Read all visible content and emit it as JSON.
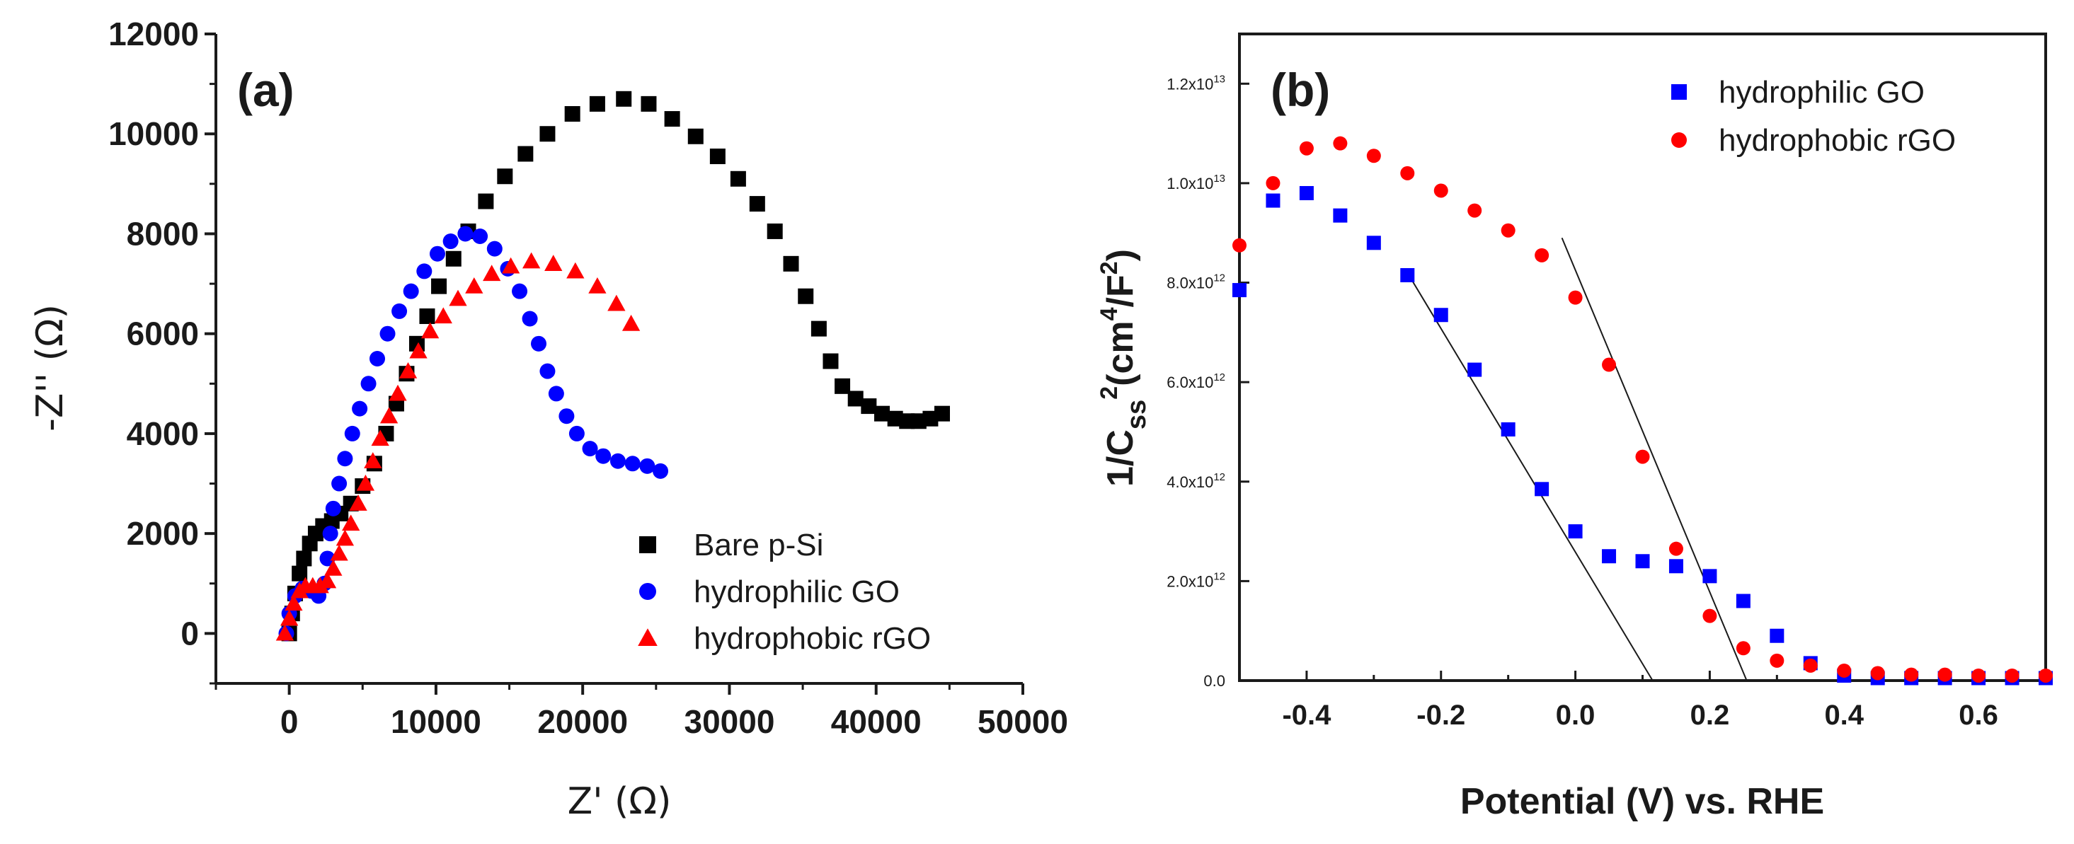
{
  "chart_data": [
    {
      "type": "scatter",
      "panel_label": "(a)",
      "xlabel": "Z' (Ω)",
      "ylabel": "-Z'' (Ω)",
      "xlim": [
        -5000,
        50000
      ],
      "ylim": [
        -1000,
        12000
      ],
      "x_ticks": [
        "0",
        "10000",
        "20000",
        "30000",
        "40000",
        "50000"
      ],
      "x_tick_values": [
        0,
        10000,
        20000,
        30000,
        40000,
        50000
      ],
      "y_ticks": [
        "0",
        "2000",
        "4000",
        "6000",
        "8000",
        "10000",
        "12000"
      ],
      "y_tick_values": [
        0,
        2000,
        4000,
        6000,
        8000,
        10000,
        12000
      ],
      "legend_position": "bottom-right",
      "series": [
        {
          "name": "Bare p-Si",
          "marker": "square",
          "color": "#000000",
          "points": [
            [
              0,
              0
            ],
            [
              200,
              400
            ],
            [
              400,
              800
            ],
            [
              700,
              1200
            ],
            [
              1000,
              1500
            ],
            [
              1400,
              1800
            ],
            [
              1800,
              2000
            ],
            [
              2300,
              2150
            ],
            [
              2900,
              2250
            ],
            [
              3500,
              2400
            ],
            [
              4200,
              2600
            ],
            [
              5000,
              2950
            ],
            [
              5800,
              3400
            ],
            [
              6600,
              4000
            ],
            [
              7300,
              4600
            ],
            [
              8000,
              5200
            ],
            [
              8700,
              5800
            ],
            [
              9400,
              6350
            ],
            [
              10200,
              6950
            ],
            [
              11200,
              7500
            ],
            [
              12200,
              8050
            ],
            [
              13400,
              8650
            ],
            [
              14700,
              9150
            ],
            [
              16100,
              9600
            ],
            [
              17600,
              10000
            ],
            [
              19300,
              10400
            ],
            [
              21000,
              10600
            ],
            [
              22800,
              10700
            ],
            [
              24500,
              10600
            ],
            [
              26100,
              10300
            ],
            [
              27700,
              9950
            ],
            [
              29200,
              9550
            ],
            [
              30600,
              9100
            ],
            [
              31900,
              8600
            ],
            [
              33100,
              8050
            ],
            [
              34200,
              7400
            ],
            [
              35200,
              6750
            ],
            [
              36100,
              6100
            ],
            [
              36900,
              5450
            ],
            [
              37700,
              4950
            ],
            [
              38600,
              4700
            ],
            [
              39500,
              4550
            ],
            [
              40400,
              4400
            ],
            [
              41300,
              4300
            ],
            [
              42100,
              4250
            ],
            [
              42900,
              4250
            ],
            [
              43700,
              4300
            ],
            [
              44500,
              4400
            ]
          ]
        },
        {
          "name": "hydrophilic GO",
          "marker": "circle",
          "color": "#0000ff",
          "points": [
            [
              -200,
              0
            ],
            [
              0,
              400
            ],
            [
              400,
              750
            ],
            [
              900,
              900
            ],
            [
              1500,
              850
            ],
            [
              2000,
              750
            ],
            [
              2400,
              1000
            ],
            [
              2600,
              1500
            ],
            [
              2800,
              2000
            ],
            [
              3000,
              2500
            ],
            [
              3400,
              3000
            ],
            [
              3800,
              3500
            ],
            [
              4300,
              4000
            ],
            [
              4800,
              4500
            ],
            [
              5400,
              5000
            ],
            [
              6000,
              5500
            ],
            [
              6700,
              6000
            ],
            [
              7500,
              6450
            ],
            [
              8300,
              6850
            ],
            [
              9200,
              7250
            ],
            [
              10100,
              7600
            ],
            [
              11000,
              7850
            ],
            [
              12000,
              8000
            ],
            [
              13000,
              7950
            ],
            [
              14000,
              7700
            ],
            [
              14900,
              7300
            ],
            [
              15700,
              6850
            ],
            [
              16400,
              6300
            ],
            [
              17000,
              5800
            ],
            [
              17600,
              5250
            ],
            [
              18200,
              4800
            ],
            [
              18900,
              4350
            ],
            [
              19600,
              4000
            ],
            [
              20500,
              3700
            ],
            [
              21400,
              3550
            ],
            [
              22400,
              3450
            ],
            [
              23400,
              3400
            ],
            [
              24400,
              3350
            ],
            [
              25300,
              3250
            ]
          ]
        },
        {
          "name": "hydrophobic rGO",
          "marker": "triangle",
          "color": "#ff0000",
          "points": [
            [
              -300,
              0
            ],
            [
              0,
              300
            ],
            [
              300,
              600
            ],
            [
              700,
              850
            ],
            [
              1100,
              950
            ],
            [
              1600,
              950
            ],
            [
              2100,
              950
            ],
            [
              2600,
              1050
            ],
            [
              3000,
              1300
            ],
            [
              3400,
              1600
            ],
            [
              3800,
              1900
            ],
            [
              4200,
              2200
            ],
            [
              4700,
              2600
            ],
            [
              5200,
              3000
            ],
            [
              5700,
              3450
            ],
            [
              6200,
              3900
            ],
            [
              6800,
              4350
            ],
            [
              7400,
              4800
            ],
            [
              8100,
              5250
            ],
            [
              8800,
              5650
            ],
            [
              9600,
              6050
            ],
            [
              10500,
              6350
            ],
            [
              11500,
              6700
            ],
            [
              12600,
              6950
            ],
            [
              13800,
              7200
            ],
            [
              15100,
              7350
            ],
            [
              16500,
              7450
            ],
            [
              18000,
              7400
            ],
            [
              19500,
              7250
            ],
            [
              21000,
              6950
            ],
            [
              22300,
              6600
            ],
            [
              23300,
              6200
            ]
          ]
        }
      ]
    },
    {
      "type": "scatter",
      "panel_label": "(b)",
      "xlabel": "Potential (V) vs. RHE",
      "ylabel": "1/C",
      "ylabel_sub": "ss",
      "ylabel_sup": "2",
      "ylabel_unit": "(cm",
      "ylabel_unit_sup": "4",
      "ylabel_unit_rest": "/F",
      "ylabel_unit_sup2": "2",
      "ylabel_close": ")",
      "xlim": [
        -0.5,
        0.7
      ],
      "ylim": [
        0,
        13000000000000.0
      ],
      "x_ticks": [
        "-0.4",
        "-0.2",
        "0.0",
        "0.2",
        "0.4",
        "0.6"
      ],
      "x_tick_values": [
        -0.4,
        -0.2,
        0.0,
        0.2,
        0.4,
        0.6
      ],
      "y_ticks": [
        {
          "value": 0,
          "base": "0.0",
          "exp": ""
        },
        {
          "value": 2000000000000.0,
          "base": "2.0x10",
          "exp": "12"
        },
        {
          "value": 4000000000000.0,
          "base": "4.0x10",
          "exp": "12"
        },
        {
          "value": 6000000000000.0,
          "base": "6.0x10",
          "exp": "12"
        },
        {
          "value": 8000000000000.0,
          "base": "8.0x10",
          "exp": "12"
        },
        {
          "value": 10000000000000.0,
          "base": "1.0x10",
          "exp": "13"
        },
        {
          "value": 12000000000000.0,
          "base": "1.2x10",
          "exp": "13"
        }
      ],
      "legend_position": "top-right",
      "series": [
        {
          "name": "hydrophilic GO",
          "marker": "square",
          "color": "#0000ff",
          "points": [
            [
              -0.5,
              7850000000000.0
            ],
            [
              -0.45,
              9650000000000.0
            ],
            [
              -0.4,
              9800000000000.0
            ],
            [
              -0.35,
              9350000000000.0
            ],
            [
              -0.3,
              8800000000000.0
            ],
            [
              -0.25,
              8150000000000.0
            ],
            [
              -0.2,
              7350000000000.0
            ],
            [
              -0.15,
              6250000000000.0
            ],
            [
              -0.1,
              5050000000000.0
            ],
            [
              -0.05,
              3850000000000.0
            ],
            [
              0.0,
              3000000000000.0
            ],
            [
              0.05,
              2500000000000.0
            ],
            [
              0.1,
              2400000000000.0
            ],
            [
              0.15,
              2300000000000.0
            ],
            [
              0.2,
              2100000000000.0
            ],
            [
              0.25,
              1600000000000.0
            ],
            [
              0.3,
              900000000000.0
            ],
            [
              0.35,
              350000000000.0
            ],
            [
              0.4,
              100000000000.0
            ],
            [
              0.45,
              50000000000.0
            ],
            [
              0.5,
              50000000000.0
            ],
            [
              0.55,
              50000000000.0
            ],
            [
              0.6,
              50000000000.0
            ],
            [
              0.65,
              50000000000.0
            ],
            [
              0.7,
              50000000000.0
            ]
          ]
        },
        {
          "name": "hydrophobic rGO",
          "marker": "circle",
          "color": "#ff0000",
          "points": [
            [
              -0.5,
              8750000000000.0
            ],
            [
              -0.45,
              10000000000000.0
            ],
            [
              -0.4,
              10700000000000.0
            ],
            [
              -0.35,
              10800000000000.0
            ],
            [
              -0.3,
              10550000000000.0
            ],
            [
              -0.25,
              10200000000000.0
            ],
            [
              -0.2,
              9850000000000.0
            ],
            [
              -0.15,
              9450000000000.0
            ],
            [
              -0.1,
              9050000000000.0
            ],
            [
              -0.05,
              8550000000000.0
            ],
            [
              0.0,
              7700000000000.0
            ],
            [
              0.05,
              6350000000000.0
            ],
            [
              0.1,
              4500000000000.0
            ],
            [
              0.15,
              2650000000000.0
            ],
            [
              0.2,
              1300000000000.0
            ],
            [
              0.25,
              650000000000.0
            ],
            [
              0.3,
              400000000000.0
            ],
            [
              0.35,
              300000000000.0
            ],
            [
              0.4,
              200000000000.0
            ],
            [
              0.45,
              150000000000.0
            ],
            [
              0.5,
              120000000000.0
            ],
            [
              0.55,
              120000000000.0
            ],
            [
              0.6,
              100000000000.0
            ],
            [
              0.65,
              100000000000.0
            ],
            [
              0.7,
              100000000000.0
            ]
          ]
        }
      ],
      "fit_lines": [
        {
          "series": "hydrophilic GO",
          "points": [
            [
              -0.25,
              8200000000000.0
            ],
            [
              0.115,
              0
            ]
          ]
        },
        {
          "series": "hydrophobic rGO",
          "points": [
            [
              -0.02,
              8900000000000.0
            ],
            [
              0.255,
              0
            ]
          ]
        }
      ]
    }
  ]
}
